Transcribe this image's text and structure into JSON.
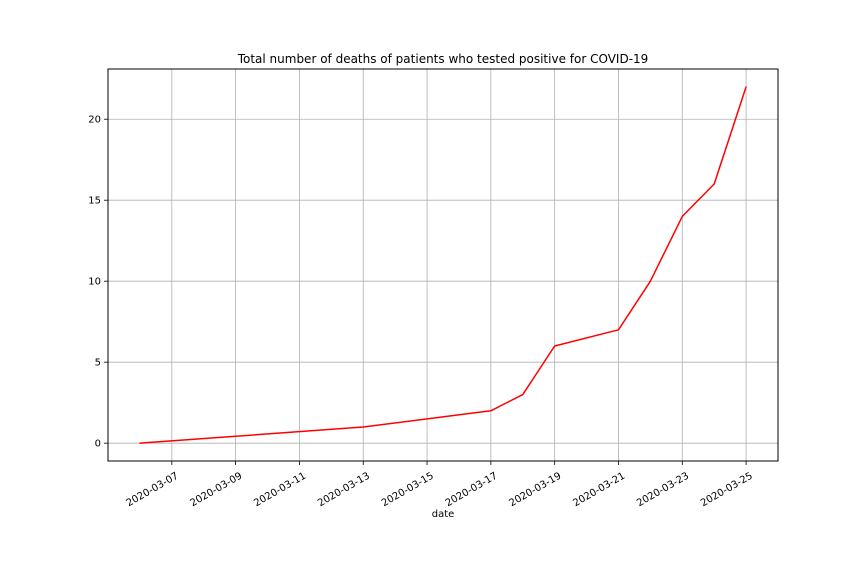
{
  "chart_data": {
    "type": "line",
    "title": "Total number of deaths of patients who tested positive for COVID-19",
    "xlabel": "date",
    "ylabel": "",
    "x": [
      "2020-03-06",
      "2020-03-13",
      "2020-03-17",
      "2020-03-18",
      "2020-03-19",
      "2020-03-21",
      "2020-03-22",
      "2020-03-23",
      "2020-03-24",
      "2020-03-25"
    ],
    "series": [
      {
        "values": [
          0,
          1,
          2,
          3,
          6,
          7,
          10,
          14,
          16,
          22
        ],
        "color": "#ff0000"
      }
    ],
    "xlim": [
      "2020-03-05",
      "2020-03-26"
    ],
    "ylim": [
      -1.1,
      23.1
    ],
    "x_ticks": [
      "2020-03-07",
      "2020-03-09",
      "2020-03-11",
      "2020-03-13",
      "2020-03-15",
      "2020-03-17",
      "2020-03-19",
      "2020-03-21",
      "2020-03-23",
      "2020-03-25"
    ],
    "y_ticks": [
      0,
      5,
      10,
      15,
      20
    ],
    "grid": true
  }
}
